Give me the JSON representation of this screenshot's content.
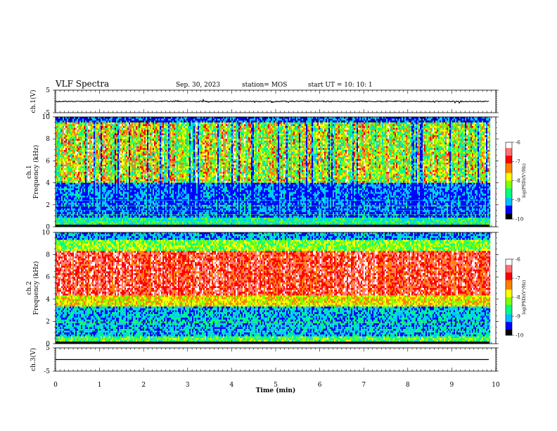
{
  "header": {
    "title": "VLF Spectra",
    "date": "Sep. 30, 2023",
    "station": "station= MOS",
    "start_ut": "start  UT =   10: 10: 1"
  },
  "colors": {
    "spec": [
      "#00007a",
      "#0000ff",
      "#00c8ff",
      "#00ff7f",
      "#7fff00",
      "#ffff00",
      "#ff7f00",
      "#ff0000",
      "#ff8080",
      "#ffffff"
    ],
    "colorbar": [
      "#000000",
      "#0000ff",
      "#00bfff",
      "#00ff80",
      "#80ff00",
      "#ffff00",
      "#ff8000",
      "#ff0000",
      "#ff7070",
      "#ffffff"
    ]
  },
  "chart_data": [
    {
      "type": "line",
      "panel": "ch1-waveform",
      "ylabel": "ch.1(V)",
      "ylim": [
        -5,
        5
      ],
      "y_ticks": [
        "5",
        "-5"
      ],
      "baseline": 0
    },
    {
      "type": "heatmap",
      "panel": "ch1-spectrogram",
      "ylabel": "ch.1 Frequency (kHz)",
      "ylim": [
        0,
        10
      ],
      "y_ticks": [
        "0",
        "2",
        "4",
        "6",
        "8",
        "10"
      ],
      "colorbar": {
        "label": "log(PSD)(V²/Hz)",
        "range": [
          -10,
          -6
        ],
        "ticks": [
          "-6",
          "-7",
          "-8",
          "-9",
          "-10"
        ]
      }
    },
    {
      "type": "heatmap",
      "panel": "ch2-spectrogram",
      "ylabel": "ch.2 Frequency (kHz)",
      "ylim": [
        0,
        10
      ],
      "y_ticks": [
        "0",
        "2",
        "4",
        "6",
        "8",
        "10"
      ],
      "colorbar": {
        "label": "log(PSD)(V²/Hz)",
        "range": [
          -10,
          -6
        ],
        "ticks": [
          "-6",
          "-7",
          "-8",
          "-9",
          "-10"
        ]
      }
    },
    {
      "type": "line",
      "panel": "ch3-waveform",
      "ylabel": "ch.3(V)",
      "ylim": [
        -5,
        5
      ],
      "y_ticks": [
        "5",
        "-5"
      ],
      "baseline": 0
    }
  ],
  "x_axis": {
    "label": "Time  (min)",
    "range": [
      0,
      10
    ],
    "data_end": 9.85,
    "ticks": [
      "0",
      "1",
      "2",
      "3",
      "4",
      "5",
      "6",
      "7",
      "8",
      "9",
      "10"
    ]
  }
}
